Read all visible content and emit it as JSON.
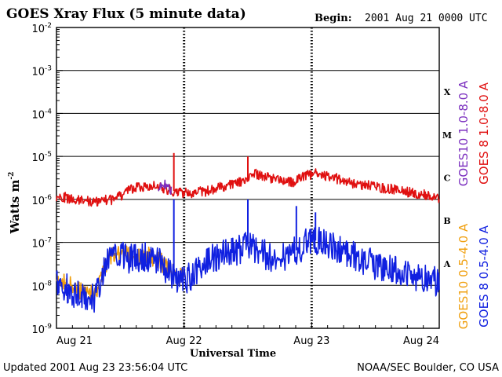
{
  "chart_data": {
    "type": "line",
    "title": "GOES Xray Flux (5 minute data)",
    "begin_label": "Begin:",
    "begin_value": "2001 Aug 21 0000 UTC",
    "xlabel": "Universal Time",
    "ylabel_base": "Watts m",
    "ylabel_exp": "-2",
    "y_scale": "log",
    "ylim": [
      1e-09,
      0.01
    ],
    "y_ticks": [
      {
        "base": "10",
        "exp": "-2",
        "value": 0.01
      },
      {
        "base": "10",
        "exp": "-3",
        "value": 0.001
      },
      {
        "base": "10",
        "exp": "-4",
        "value": 0.0001
      },
      {
        "base": "10",
        "exp": "-5",
        "value": 1e-05
      },
      {
        "base": "10",
        "exp": "-6",
        "value": 1e-06
      },
      {
        "base": "10",
        "exp": "-7",
        "value": 1e-07
      },
      {
        "base": "10",
        "exp": "-8",
        "value": 1e-08
      },
      {
        "base": "10",
        "exp": "-9",
        "value": 1e-09
      }
    ],
    "x_ticks": [
      "Aug 21",
      "Aug 22",
      "Aug 23",
      "Aug 24"
    ],
    "xlim_days": [
      0,
      3
    ],
    "flare_classes": [
      {
        "label": "X",
        "value": 0.0001
      },
      {
        "label": "M",
        "value": 1e-05
      },
      {
        "label": "C",
        "value": 1e-06
      },
      {
        "label": "B",
        "value": 1e-07
      },
      {
        "label": "A",
        "value": 1e-08
      }
    ],
    "gridlines": [
      0.001,
      0.0001,
      1e-05,
      1e-06,
      1e-07,
      1e-08
    ],
    "legend": [
      {
        "name": "GOES10 1.0-8.0 A",
        "color": "#7b2fbf"
      },
      {
        "name": "GOES 8 1.0-8.0 A",
        "color": "#e01010"
      },
      {
        "name": "GOES10 0.5-4.0 A",
        "color": "#f0a010"
      },
      {
        "name": "GOES 8 0.5-4.0 A",
        "color": "#1020e0"
      }
    ],
    "series": [
      {
        "name": "GOES 8 1.0-8.0 A",
        "color": "#e01010",
        "x": [
          0,
          0.15,
          0.3,
          0.45,
          0.6,
          0.75,
          0.9,
          1.0,
          1.15,
          1.3,
          1.45,
          1.55,
          1.7,
          1.85,
          1.95,
          2.05,
          2.2,
          2.35,
          2.5,
          2.65,
          2.8,
          2.95,
          3.0
        ],
        "values": [
          1.2e-06,
          1e-06,
          9e-07,
          1e-06,
          1.8e-06,
          2.2e-06,
          1.6e-06,
          1.4e-06,
          1.5e-06,
          2e-06,
          2.5e-06,
          4e-06,
          3e-06,
          2.5e-06,
          3.5e-06,
          4e-06,
          3e-06,
          2.2e-06,
          2e-06,
          1.7e-06,
          1.4e-06,
          1.2e-06,
          1.1e-06
        ]
      },
      {
        "name": "GOES10 1.0-8.0 A",
        "color": "#7b2fbf",
        "x": [
          0.8,
          0.85,
          0.9
        ],
        "values": [
          1.8e-06,
          2.2e-06,
          1.7e-06
        ]
      },
      {
        "name": "GOES10 0.5-4.0 A",
        "color": "#f0a010",
        "x": [
          0,
          0.1,
          0.2,
          0.3,
          0.4,
          0.5,
          0.6,
          0.7,
          0.8,
          0.9,
          1.0
        ],
        "values": [
          1.5e-08,
          1e-08,
          7e-09,
          6e-09,
          4e-08,
          6e-08,
          4.5e-08,
          5e-08,
          4e-08,
          2e-08,
          1.5e-08
        ]
      },
      {
        "name": "GOES 8 0.5-4.0 A",
        "color": "#1020e0",
        "x": [
          0,
          0.1,
          0.2,
          0.3,
          0.4,
          0.5,
          0.6,
          0.7,
          0.8,
          0.9,
          1.0,
          1.1,
          1.2,
          1.3,
          1.4,
          1.5,
          1.6,
          1.7,
          1.8,
          1.9,
          2.0,
          2.1,
          2.2,
          2.3,
          2.4,
          2.5,
          2.6,
          2.7,
          2.8,
          2.9,
          3.0
        ],
        "values": [
          1.2e-08,
          8e-09,
          5e-09,
          5e-09,
          3.5e-08,
          5e-08,
          4e-08,
          4.5e-08,
          3.5e-08,
          1.6e-08,
          1.3e-08,
          2e-08,
          4e-08,
          5e-08,
          6e-08,
          9e-08,
          6e-08,
          4e-08,
          5e-08,
          7e-08,
          1.2e-07,
          9e-08,
          7e-08,
          5e-08,
          4e-08,
          3e-08,
          2.5e-08,
          2e-08,
          1.6e-08,
          1.4e-08,
          1.2e-08
        ]
      }
    ],
    "spikes": [
      {
        "series": "GOES 8 1.0-8.0 A",
        "x": 0.92,
        "value": 1.2e-05,
        "color": "#e01010"
      },
      {
        "series": "GOES 8 0.5-4.0 A",
        "x": 0.92,
        "value": 1e-06,
        "color": "#1020e0"
      },
      {
        "series": "GOES 8 0.5-4.0 A",
        "x": 1.5,
        "value": 1e-06,
        "color": "#1020e0"
      },
      {
        "series": "GOES 8 1.0-8.0 A",
        "x": 1.5,
        "value": 1e-05,
        "color": "#e01010"
      },
      {
        "series": "GOES 8 0.5-4.0 A",
        "x": 1.88,
        "value": 7e-07,
        "color": "#1020e0"
      },
      {
        "series": "GOES 8 0.5-4.0 A",
        "x": 2.03,
        "value": 5e-07,
        "color": "#1020e0"
      }
    ]
  },
  "footer": {
    "updated": "Updated 2001 Aug 23 23:56:04 UTC",
    "credit": "NOAA/SEC Boulder, CO USA"
  }
}
